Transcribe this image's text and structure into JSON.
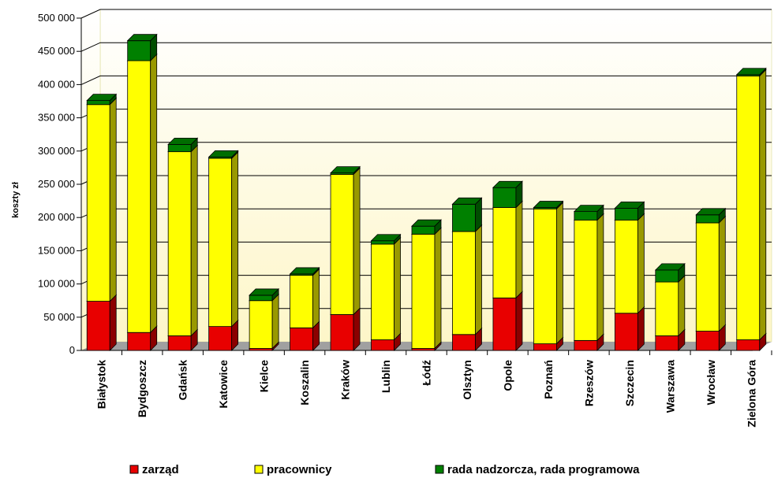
{
  "chart_data": {
    "type": "bar",
    "stacked": true,
    "three_d": true,
    "ylabel": "koszty zł",
    "ylim": [
      0,
      500000
    ],
    "y_tick_labels": [
      "0",
      "50 000",
      "100 000",
      "150 000",
      "200 000",
      "250 000",
      "300 000",
      "350 000",
      "400 000",
      "450 000",
      "500 000"
    ],
    "grid": true,
    "legend_position": "bottom",
    "categories": [
      "Białystok",
      "Bydgoszcz",
      "Gdańsk",
      "Katowice",
      "Kielce",
      "Koszalin",
      "Kraków",
      "Lublin",
      "Łódź",
      "Olsztyn",
      "Opole",
      "Poznań",
      "Rzeszów",
      "Szczecin",
      "Warszawa",
      "Wrocław",
      "Zielona Góra"
    ],
    "series": [
      {
        "name": "zarząd",
        "color": "#e80000",
        "values": [
          74000,
          27000,
          22000,
          36000,
          3000,
          34000,
          54000,
          16000,
          3000,
          24000,
          79000,
          10000,
          15000,
          56000,
          22000,
          29000,
          16000
        ]
      },
      {
        "name": "pracownicy",
        "color": "#ffff00",
        "values": [
          296000,
          409000,
          277000,
          253000,
          72000,
          79000,
          211000,
          144000,
          172000,
          155000,
          136000,
          203000,
          181000,
          140000,
          81000,
          163000,
          397000
        ]
      },
      {
        "name": "rada nadzorcza, rada programowa",
        "color": "#008000",
        "values": [
          6000,
          30000,
          11000,
          2000,
          8000,
          2000,
          2000,
          5000,
          12000,
          41000,
          30000,
          2000,
          13000,
          18000,
          18000,
          12000,
          2000
        ]
      }
    ]
  }
}
